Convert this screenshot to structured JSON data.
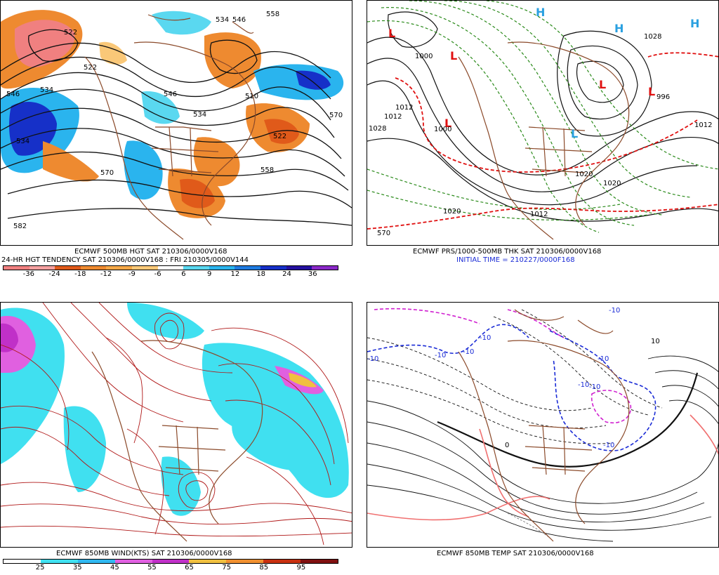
{
  "panels": {
    "top_left": {
      "caption_line1": "ECMWF 500MB HGT SAT 210306/0000V168",
      "caption_line2": "24-HR HGT TENDENCY SAT 210306/0000V168 : FRI 210305/0000V144",
      "colorbar": {
        "labels": [
          "-36",
          "-24",
          "-18",
          "-12",
          "-9",
          "-6",
          "6",
          "9",
          "12",
          "18",
          "24",
          "36"
        ],
        "colors": [
          "#f08080",
          "#f4a0a0",
          "#e05a1a",
          "#ee8a30",
          "#f5a848",
          "#fac878",
          "#ffffff",
          "#5ad8f0",
          "#2ab4ee",
          "#1e7ae0",
          "#1630c8",
          "#2410a0",
          "#8a28c8"
        ]
      },
      "contour_labels": [
        "546",
        "534",
        "522",
        "558",
        "546",
        "534",
        "510",
        "570",
        "546",
        "534",
        "522",
        "558",
        "570",
        "582",
        "522",
        "534"
      ]
    },
    "top_right": {
      "caption_line1": "ECMWF PRS/1000-500MB THK SAT 210306/0000V168",
      "caption_line2": "INITIAL TIME = 210227/0000F168",
      "contour_labels": [
        "1028",
        "1000",
        "1020",
        "1020",
        "1012",
        "1012",
        "1012",
        "1020",
        "1000",
        "1028",
        "570",
        "996",
        "1012"
      ],
      "highs": [
        "H",
        "H",
        "H"
      ],
      "lows": [
        "L",
        "L",
        "L",
        "L",
        "L",
        "L"
      ]
    },
    "bottom_left": {
      "caption_line1": "ECMWF 850MB WIND(KTS) SAT 210306/0000V168",
      "colorbar": {
        "labels": [
          "25",
          "35",
          "45",
          "55",
          "65",
          "75",
          "85",
          "95"
        ],
        "colors": [
          "#ffffff",
          "#40e0f0",
          "#30b8f0",
          "#e060e0",
          "#c030c8",
          "#f0c040",
          "#f09030",
          "#c83010",
          "#801010"
        ]
      }
    },
    "bottom_right": {
      "caption_line1": "ECMWF 850MB TEMP SAT 210306/0000V168",
      "contour_labels": [
        "-10",
        "-10",
        "-10",
        "-10",
        "-10",
        "-10",
        "-10",
        "-10",
        "-10",
        "10",
        "0"
      ]
    }
  }
}
